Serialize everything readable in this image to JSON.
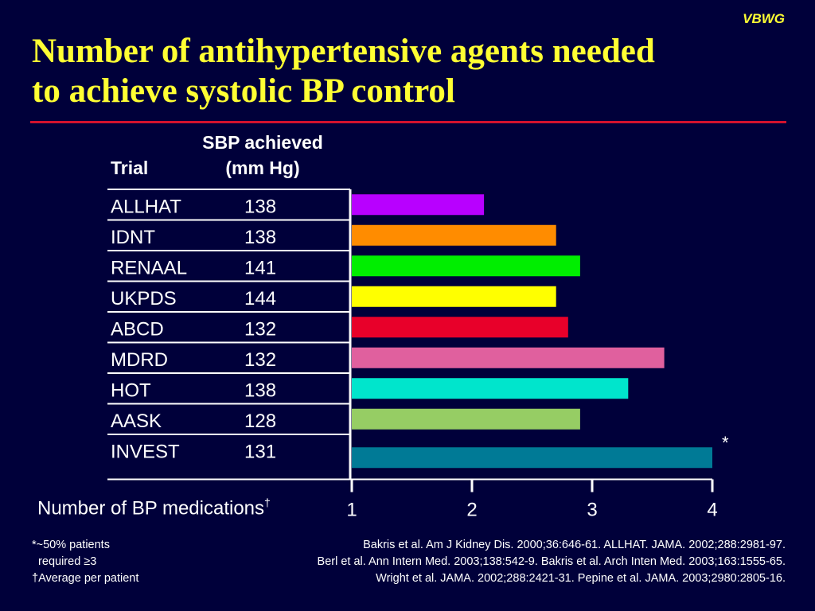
{
  "brand": "VBWG",
  "title_line1": "Number of antihypertensive agents needed",
  "title_line2": "to achieve systolic BP control",
  "header_trial": "Trial",
  "header_sbp_line1": "SBP achieved",
  "header_sbp_line2": "(mm Hg)",
  "chart_data": {
    "type": "bar",
    "orientation": "horizontal",
    "categories": [
      "ALLHAT",
      "IDNT",
      "RENAAL",
      "UKPDS",
      "ABCD",
      "MDRD",
      "HOT",
      "AASK",
      "INVEST"
    ],
    "sbp_achieved": [
      "138",
      "138",
      "141",
      "144",
      "132",
      "132",
      "138",
      "128",
      "131"
    ],
    "values": [
      2.1,
      2.7,
      2.9,
      2.7,
      2.8,
      3.6,
      3.3,
      2.9,
      4.0
    ],
    "colors": [
      "#b800ff",
      "#ff8c00",
      "#00ee00",
      "#ffff00",
      "#e8002a",
      "#e0609e",
      "#00e5cc",
      "#96cd64",
      "#007a96"
    ],
    "annotations": [
      {
        "category": "INVEST",
        "text": "*"
      }
    ],
    "xlabel": "Number of BP medications",
    "xlabel_sup": "†",
    "xlim": [
      1,
      4
    ],
    "xticks": [
      "1",
      "2",
      "3",
      "4"
    ],
    "grid": false
  },
  "footnotes_left": [
    "*~50% patients",
    "  required ≥3",
    "†Average per patient"
  ],
  "references": [
    "Bakris et al. Am J Kidney Dis. 2000;36:646-61. ALLHAT. JAMA. 2002;288:2981-97.",
    "Berl et al. Ann Intern Med. 2003;138:542-9. Bakris et al. Arch Inten Med. 2003;163:1555-65.",
    "Wright et al. JAMA. 2002;288:2421-31. Pepine et al. JAMA. 2003;2980:2805-16."
  ]
}
